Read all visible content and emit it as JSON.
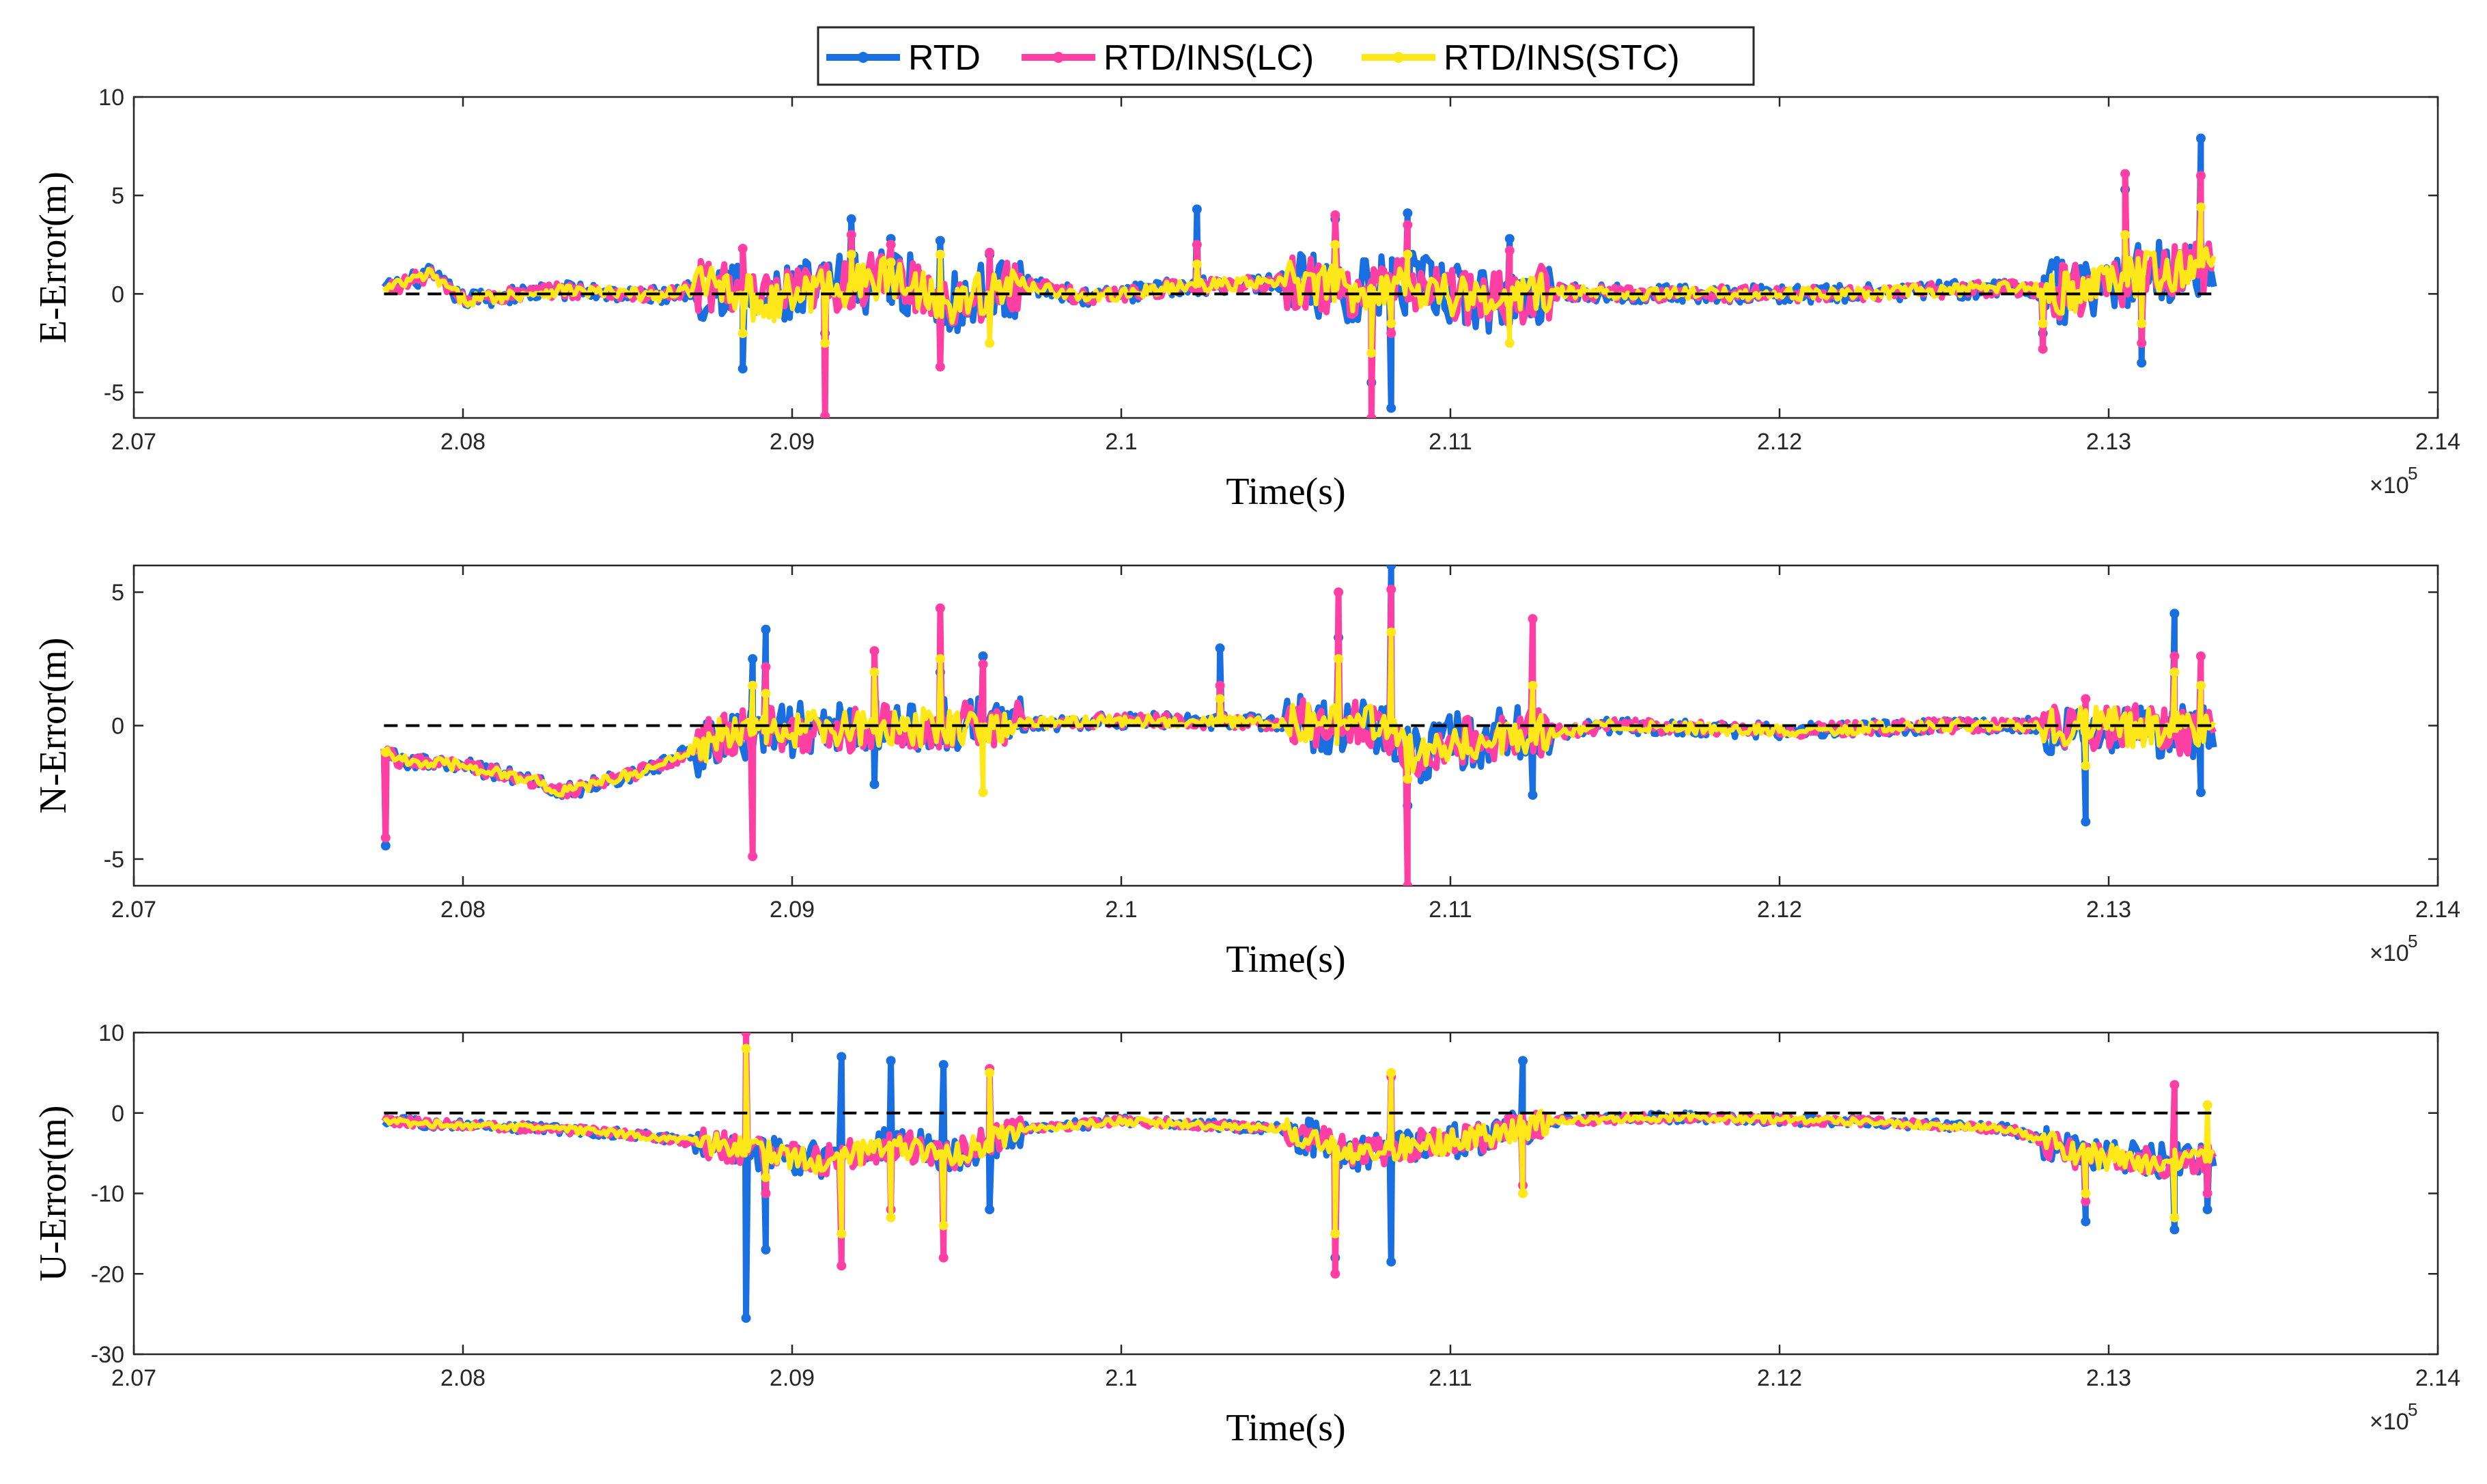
{
  "chart_data": {
    "type": "line",
    "legend": {
      "placement": "top-center",
      "entries": [
        "RTD",
        "RTD/INS(LC)",
        "RTD/INS(STC)"
      ]
    },
    "colors": {
      "RTD": "#1a6fe0",
      "RTD/INS(LC)": "#ff3fa4",
      "RTD/INS(STC)": "#ffe81a",
      "zero_line": "#000000",
      "axes": "#262626"
    },
    "x_exponent_label": "×10",
    "x_exponent_power": "5",
    "x_tick_labels": [
      "2.07",
      "2.08",
      "2.09",
      "2.1",
      "2.11",
      "2.12",
      "2.13",
      "2.14"
    ],
    "x_ticks": [
      207000,
      208000,
      209000,
      210000,
      211000,
      212000,
      213000,
      214000
    ],
    "xlim": [
      207000,
      214000
    ],
    "x_data_range": [
      207760,
      213320
    ],
    "panels": [
      {
        "ylabel": "E-Error(m)",
        "xlabel": "Time(s)",
        "ylim": [
          -6.3,
          10
        ],
        "y_ticks": [
          -5,
          0,
          5,
          10
        ],
        "y_tick_labels": [
          "-5",
          "0",
          "5",
          "10"
        ],
        "profile_x": [
          207760,
          207900,
          208000,
          208300,
          208600,
          208800,
          208900,
          209100,
          209300,
          209500,
          209700,
          209900,
          210200,
          210500,
          210700,
          210900,
          211100,
          211300,
          211700,
          212200,
          212700,
          212900,
          213100,
          213320
        ],
        "profile_y": [
          0.2,
          1.0,
          -0.3,
          0.2,
          -0.1,
          0.6,
          -0.5,
          0.3,
          0.8,
          -0.4,
          0.5,
          -0.2,
          0.4,
          0.6,
          0.2,
          0.5,
          -0.4,
          0.1,
          0.0,
          0.0,
          0.3,
          0.1,
          1.0,
          1.5
        ],
        "spikes": [
          {
            "x": 208850,
            "RTD": -3.8,
            "RTD/INS(LC)": 2.3,
            "RTD/INS(STC)": -2.0
          },
          {
            "x": 209100,
            "RTD": -2.0,
            "RTD/INS(LC)": -6.2,
            "RTD/INS(STC)": -2.5
          },
          {
            "x": 209180,
            "RTD": 3.8,
            "RTD/INS(LC)": 3.0,
            "RTD/INS(STC)": 2.0
          },
          {
            "x": 209300,
            "RTD": 2.8,
            "RTD/INS(LC)": 2.5,
            "RTD/INS(STC)": 1.6
          },
          {
            "x": 209450,
            "RTD": 2.7,
            "RTD/INS(LC)": -3.7,
            "RTD/INS(STC)": 2.0
          },
          {
            "x": 209600,
            "RTD": 2.0,
            "RTD/INS(LC)": 2.1,
            "RTD/INS(STC)": -2.5
          },
          {
            "x": 210230,
            "RTD": 4.3,
            "RTD/INS(LC)": 2.5,
            "RTD/INS(STC)": 1.5
          },
          {
            "x": 210650,
            "RTD": 3.8,
            "RTD/INS(LC)": 4.0,
            "RTD/INS(STC)": 2.5
          },
          {
            "x": 210760,
            "RTD": -4.5,
            "RTD/INS(LC)": -6.3,
            "RTD/INS(STC)": -3.0
          },
          {
            "x": 210820,
            "RTD": -5.8,
            "RTD/INS(LC)": -2.0,
            "RTD/INS(STC)": -1.5
          },
          {
            "x": 210870,
            "RTD": 4.1,
            "RTD/INS(LC)": 3.5,
            "RTD/INS(STC)": 2.0
          },
          {
            "x": 211180,
            "RTD": 2.8,
            "RTD/INS(LC)": 2.2,
            "RTD/INS(STC)": -2.5
          },
          {
            "x": 212800,
            "RTD": -2.0,
            "RTD/INS(LC)": -2.8,
            "RTD/INS(STC)": -1.5
          },
          {
            "x": 213050,
            "RTD": 5.3,
            "RTD/INS(LC)": 6.1,
            "RTD/INS(STC)": 3.0
          },
          {
            "x": 213100,
            "RTD": -3.5,
            "RTD/INS(LC)": -2.5,
            "RTD/INS(STC)": -1.5
          },
          {
            "x": 213280,
            "RTD": 7.9,
            "RTD/INS(LC)": 6.0,
            "RTD/INS(STC)": 4.4
          }
        ]
      },
      {
        "ylabel": "N-Error(m)",
        "xlabel": "Time(s)",
        "ylim": [
          -6,
          6
        ],
        "y_ticks": [
          -5,
          0,
          5
        ],
        "y_tick_labels": [
          "-5",
          "0",
          "5"
        ],
        "profile_x": [
          207760,
          207800,
          208000,
          208200,
          208300,
          208400,
          208600,
          208800,
          209000,
          209500,
          210000,
          210500,
          210800,
          210900,
          211000,
          211500,
          212000,
          212500,
          213000,
          213320
        ],
        "profile_y": [
          -0.8,
          -1.3,
          -1.5,
          -2.0,
          -2.5,
          -2.2,
          -1.5,
          -0.3,
          -0.2,
          0.0,
          0.2,
          0.1,
          0.0,
          -1.2,
          -0.6,
          0.0,
          -0.2,
          0.0,
          0.0,
          -0.3
        ],
        "spikes": [
          {
            "x": 207765,
            "RTD": -4.5,
            "RTD/INS(LC)": -4.2,
            "RTD/INS(STC)": -1.0
          },
          {
            "x": 208880,
            "RTD": 2.5,
            "RTD/INS(LC)": -4.9,
            "RTD/INS(STC)": 1.5
          },
          {
            "x": 208920,
            "RTD": 3.6,
            "RTD/INS(LC)": 2.2,
            "RTD/INS(STC)": 1.2
          },
          {
            "x": 209250,
            "RTD": -2.2,
            "RTD/INS(LC)": 2.8,
            "RTD/INS(STC)": 2.0
          },
          {
            "x": 209450,
            "RTD": 2.0,
            "RTD/INS(LC)": 4.4,
            "RTD/INS(STC)": 2.5
          },
          {
            "x": 209580,
            "RTD": 2.6,
            "RTD/INS(LC)": 2.3,
            "RTD/INS(STC)": -2.5
          },
          {
            "x": 210300,
            "RTD": 2.9,
            "RTD/INS(LC)": 1.5,
            "RTD/INS(STC)": 1.0
          },
          {
            "x": 210660,
            "RTD": 3.3,
            "RTD/INS(LC)": 5.0,
            "RTD/INS(STC)": 2.5
          },
          {
            "x": 210820,
            "RTD": 6.6,
            "RTD/INS(LC)": 5.1,
            "RTD/INS(STC)": 3.5
          },
          {
            "x": 210870,
            "RTD": -3.0,
            "RTD/INS(LC)": -6.0,
            "RTD/INS(STC)": -2.0
          },
          {
            "x": 211250,
            "RTD": -2.6,
            "RTD/INS(LC)": 4.0,
            "RTD/INS(STC)": 1.5
          },
          {
            "x": 212930,
            "RTD": -3.6,
            "RTD/INS(LC)": 1.0,
            "RTD/INS(STC)": -1.5
          },
          {
            "x": 213200,
            "RTD": 4.2,
            "RTD/INS(LC)": 2.6,
            "RTD/INS(STC)": 2.0
          },
          {
            "x": 213280,
            "RTD": -2.5,
            "RTD/INS(LC)": 2.6,
            "RTD/INS(STC)": 1.5
          }
        ]
      },
      {
        "ylabel": "U-Error(m)",
        "xlabel": "Time(s)",
        "ylim": [
          -30,
          10
        ],
        "y_ticks": [
          -30,
          -20,
          -10,
          0,
          10
        ],
        "y_tick_labels": [
          "-30",
          "-20",
          "-10",
          "0",
          "10"
        ],
        "profile_x": [
          207760,
          208000,
          208300,
          208600,
          208900,
          209100,
          209300,
          209500,
          209700,
          210000,
          210500,
          210700,
          210900,
          211100,
          211300,
          211700,
          212200,
          212700,
          212900,
          213100,
          213320
        ],
        "profile_y": [
          -1.0,
          -1.5,
          -2.0,
          -3.0,
          -5.0,
          -6.0,
          -4.0,
          -5.0,
          -2.0,
          -1.0,
          -2.0,
          -5.0,
          -4.0,
          -3.0,
          -1.0,
          -0.5,
          -1.0,
          -2.0,
          -5.0,
          -6.0,
          -6.0
        ],
        "spikes": [
          {
            "x": 208860,
            "RTD": -25.5,
            "RTD/INS(LC)": 10.0,
            "RTD/INS(STC)": 8.0
          },
          {
            "x": 208920,
            "RTD": -17.0,
            "RTD/INS(LC)": -10.0,
            "RTD/INS(STC)": -8.0
          },
          {
            "x": 209150,
            "RTD": 7.0,
            "RTD/INS(LC)": -19.0,
            "RTD/INS(STC)": -15.0
          },
          {
            "x": 209300,
            "RTD": 6.5,
            "RTD/INS(LC)": -12.0,
            "RTD/INS(STC)": -13.0
          },
          {
            "x": 209460,
            "RTD": 6.0,
            "RTD/INS(LC)": -18.0,
            "RTD/INS(STC)": -14.0
          },
          {
            "x": 209600,
            "RTD": -12.0,
            "RTD/INS(LC)": 5.5,
            "RTD/INS(STC)": 5.0
          },
          {
            "x": 210650,
            "RTD": -18.0,
            "RTD/INS(LC)": -20.0,
            "RTD/INS(STC)": -15.0
          },
          {
            "x": 210820,
            "RTD": -18.5,
            "RTD/INS(LC)": 4.5,
            "RTD/INS(STC)": 5.0
          },
          {
            "x": 211220,
            "RTD": 6.5,
            "RTD/INS(LC)": -9.0,
            "RTD/INS(STC)": -10.0
          },
          {
            "x": 212930,
            "RTD": -13.5,
            "RTD/INS(LC)": -11.0,
            "RTD/INS(STC)": -10.0
          },
          {
            "x": 213200,
            "RTD": -14.5,
            "RTD/INS(LC)": 3.5,
            "RTD/INS(STC)": -13.0
          },
          {
            "x": 213300,
            "RTD": -12.0,
            "RTD/INS(LC)": -10.0,
            "RTD/INS(STC)": 1.0
          }
        ]
      }
    ]
  }
}
